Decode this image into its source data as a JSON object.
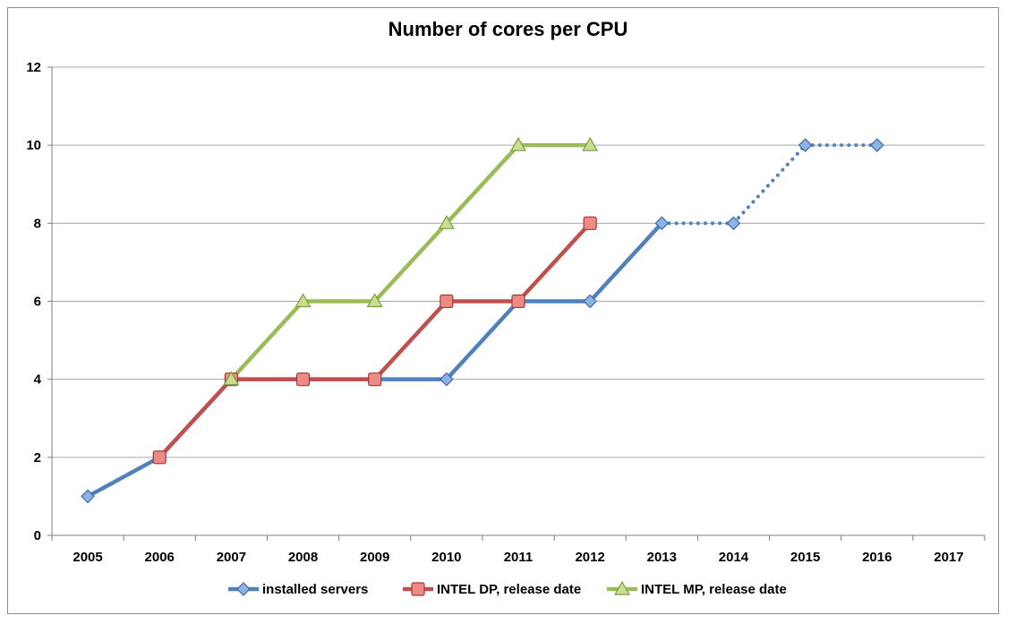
{
  "chart_data": {
    "type": "line",
    "title": "Number of cores per CPU",
    "xlabel": "",
    "ylabel": "",
    "categories": [
      "2005",
      "2006",
      "2007",
      "2008",
      "2009",
      "2010",
      "2011",
      "2012",
      "2013",
      "2014",
      "2015",
      "2016",
      "2017"
    ],
    "ylim": [
      0,
      12
    ],
    "yticks": [
      0,
      2,
      4,
      6,
      8,
      10,
      12
    ],
    "grid": true,
    "legend_position": "bottom",
    "series": [
      {
        "name": "installed servers",
        "color": "#4f81bd",
        "marker": "diamond",
        "values": [
          1,
          2,
          4,
          4,
          4,
          4,
          6,
          6,
          8,
          8,
          10,
          10,
          null
        ],
        "dotted_from_index": 8
      },
      {
        "name": "INTEL DP, release date",
        "color": "#c0504d",
        "marker": "square",
        "values": [
          null,
          2,
          4,
          4,
          4,
          6,
          6,
          8,
          null,
          null,
          null,
          null,
          null
        ]
      },
      {
        "name": "INTEL MP, release date",
        "color": "#9bbb59",
        "marker": "triangle",
        "values": [
          null,
          null,
          4,
          6,
          6,
          8,
          10,
          10,
          null,
          null,
          null,
          null,
          null
        ]
      }
    ]
  }
}
